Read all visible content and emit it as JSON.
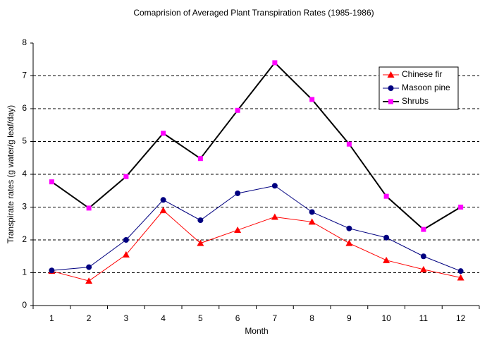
{
  "chart_data": {
    "type": "line",
    "title": "Comaprision of Averaged Plant Transpiration Rates (1985-1986)",
    "x_label": "Month",
    "y_label": "Transpirate rates (g water/g leaf/day)",
    "categories": [
      1,
      2,
      3,
      4,
      5,
      6,
      7,
      8,
      9,
      10,
      11,
      12
    ],
    "series": [
      {
        "name": "Chinese fir",
        "color": "#ff0000",
        "marker": "triangle",
        "values": [
          1.05,
          0.75,
          1.55,
          2.9,
          1.9,
          2.3,
          2.7,
          2.55,
          1.9,
          1.38,
          1.1,
          0.85
        ]
      },
      {
        "name": "Masoon pine",
        "color": "#000080",
        "marker": "circle",
        "values": [
          1.07,
          1.17,
          2.0,
          3.22,
          2.6,
          3.42,
          3.65,
          2.85,
          2.35,
          2.07,
          1.5,
          1.05
        ]
      },
      {
        "name": "Shrubs",
        "color": "#000000",
        "marker_color": "#ff00ff",
        "marker": "square",
        "values": [
          3.77,
          2.97,
          3.93,
          5.25,
          4.48,
          5.95,
          7.4,
          6.28,
          4.92,
          3.33,
          2.32,
          3.0
        ]
      }
    ],
    "ylim": [
      0,
      8
    ],
    "yticks": [
      0,
      1,
      2,
      3,
      4,
      5,
      6,
      7,
      8
    ],
    "grid": true,
    "legend": "upper right"
  }
}
